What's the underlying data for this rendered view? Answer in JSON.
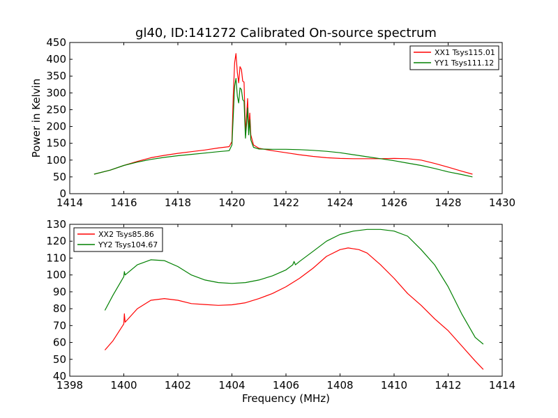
{
  "chart_data": [
    {
      "type": "line",
      "title": "gl40, ID:141272 Calibrated On-source spectrum",
      "xlabel": "",
      "ylabel": "Power in Kelvin",
      "xlim": [
        1414,
        1430
      ],
      "ylim": [
        0,
        450
      ],
      "xticks": [
        "1414",
        "1416",
        "1418",
        "1420",
        "1422",
        "1424",
        "1426",
        "1428",
        "1430"
      ],
      "yticks": [
        "0",
        "50",
        "100",
        "150",
        "200",
        "250",
        "300",
        "350",
        "400",
        "450"
      ],
      "legend_position": "top-right",
      "series": [
        {
          "name": "XX1 Tsys115.01",
          "color": "#ff0000",
          "points": [
            [
              1414.9,
              58
            ],
            [
              1415.5,
              70
            ],
            [
              1416,
              84
            ],
            [
              1416.5,
              96
            ],
            [
              1417,
              107
            ],
            [
              1417.5,
              114
            ],
            [
              1418,
              120
            ],
            [
              1418.5,
              125
            ],
            [
              1419,
              130
            ],
            [
              1419.5,
              136
            ],
            [
              1419.9,
              140
            ],
            [
              1420.0,
              155
            ],
            [
              1420.05,
              290
            ],
            [
              1420.1,
              390
            ],
            [
              1420.15,
              417
            ],
            [
              1420.2,
              360
            ],
            [
              1420.25,
              330
            ],
            [
              1420.3,
              378
            ],
            [
              1420.35,
              370
            ],
            [
              1420.4,
              335
            ],
            [
              1420.45,
              332
            ],
            [
              1420.5,
              180
            ],
            [
              1420.55,
              240
            ],
            [
              1420.58,
              283
            ],
            [
              1420.62,
              190
            ],
            [
              1420.66,
              240
            ],
            [
              1420.7,
              175
            ],
            [
              1420.8,
              145
            ],
            [
              1421,
              135
            ],
            [
              1421.5,
              128
            ],
            [
              1422,
              122
            ],
            [
              1422.5,
              116
            ],
            [
              1423,
              111
            ],
            [
              1423.5,
              107
            ],
            [
              1424,
              105
            ],
            [
              1424.5,
              104
            ],
            [
              1425,
              104
            ],
            [
              1425.5,
              104
            ],
            [
              1426,
              105
            ],
            [
              1426.5,
              104
            ],
            [
              1427,
              100
            ],
            [
              1427.5,
              90
            ],
            [
              1428,
              79
            ],
            [
              1428.5,
              67
            ],
            [
              1428.9,
              58
            ]
          ]
        },
        {
          "name": "YY1 Tsys111.12",
          "color": "#008000",
          "points": [
            [
              1414.9,
              58
            ],
            [
              1415.5,
              70
            ],
            [
              1416,
              84
            ],
            [
              1416.5,
              94
            ],
            [
              1417,
              102
            ],
            [
              1417.5,
              108
            ],
            [
              1418,
              113
            ],
            [
              1418.5,
              117
            ],
            [
              1419,
              121
            ],
            [
              1419.5,
              125
            ],
            [
              1419.9,
              128
            ],
            [
              1420.0,
              145
            ],
            [
              1420.05,
              230
            ],
            [
              1420.1,
              320
            ],
            [
              1420.15,
              343
            ],
            [
              1420.2,
              290
            ],
            [
              1420.25,
              270
            ],
            [
              1420.3,
              315
            ],
            [
              1420.35,
              310
            ],
            [
              1420.4,
              280
            ],
            [
              1420.45,
              275
            ],
            [
              1420.5,
              165
            ],
            [
              1420.55,
              215
            ],
            [
              1420.58,
              255
            ],
            [
              1420.62,
              175
            ],
            [
              1420.66,
              220
            ],
            [
              1420.7,
              160
            ],
            [
              1420.8,
              138
            ],
            [
              1421,
              133
            ],
            [
              1421.5,
              132
            ],
            [
              1422,
              132
            ],
            [
              1422.5,
              131
            ],
            [
              1423,
              129
            ],
            [
              1423.5,
              126
            ],
            [
              1424,
              122
            ],
            [
              1424.5,
              116
            ],
            [
              1425,
              110
            ],
            [
              1425.5,
              104
            ],
            [
              1426,
              98
            ],
            [
              1426.5,
              91
            ],
            [
              1427,
              84
            ],
            [
              1427.5,
              75
            ],
            [
              1428,
              65
            ],
            [
              1428.5,
              57
            ],
            [
              1428.9,
              50
            ]
          ]
        }
      ]
    },
    {
      "type": "line",
      "title": "",
      "xlabel": "Frequency (MHz)",
      "ylabel": "",
      "xlim": [
        1398,
        1414
      ],
      "ylim": [
        40,
        130
      ],
      "xticks": [
        "1398",
        "1400",
        "1402",
        "1404",
        "1406",
        "1408",
        "1410",
        "1412",
        "1414"
      ],
      "yticks": [
        "40",
        "50",
        "60",
        "70",
        "80",
        "90",
        "100",
        "110",
        "120",
        "130"
      ],
      "legend_position": "top-left",
      "series": [
        {
          "name": "XX2 Tsys85.86",
          "color": "#ff0000",
          "points": [
            [
              1399.3,
              55.5
            ],
            [
              1399.6,
              61
            ],
            [
              1400,
              71
            ],
            [
              1400.02,
              77
            ],
            [
              1400.05,
              72
            ],
            [
              1400.5,
              80
            ],
            [
              1401,
              85
            ],
            [
              1401.5,
              86
            ],
            [
              1402,
              85
            ],
            [
              1402.5,
              83
            ],
            [
              1403,
              82.5
            ],
            [
              1403.5,
              82
            ],
            [
              1404,
              82.3
            ],
            [
              1404.5,
              83.5
            ],
            [
              1405,
              86
            ],
            [
              1405.5,
              89
            ],
            [
              1406,
              93
            ],
            [
              1406.5,
              98
            ],
            [
              1407,
              104
            ],
            [
              1407.5,
              111
            ],
            [
              1408,
              115
            ],
            [
              1408.3,
              116
            ],
            [
              1408.7,
              115
            ],
            [
              1409,
              113
            ],
            [
              1409.5,
              106
            ],
            [
              1410,
              98
            ],
            [
              1410.5,
              89
            ],
            [
              1411,
              82
            ],
            [
              1411.5,
              74
            ],
            [
              1412,
              67
            ],
            [
              1412.5,
              58
            ],
            [
              1413,
              49
            ],
            [
              1413.3,
              44
            ]
          ]
        },
        {
          "name": "YY2 Tsys104.67",
          "color": "#008000",
          "points": [
            [
              1399.3,
              79
            ],
            [
              1399.6,
              88
            ],
            [
              1400,
              99
            ],
            [
              1400.02,
              102
            ],
            [
              1400.05,
              100
            ],
            [
              1400.5,
              106
            ],
            [
              1401,
              109
            ],
            [
              1401.5,
              108.5
            ],
            [
              1402,
              105
            ],
            [
              1402.5,
              100
            ],
            [
              1403,
              97
            ],
            [
              1403.5,
              95.5
            ],
            [
              1404,
              95
            ],
            [
              1404.5,
              95.5
            ],
            [
              1405,
              97
            ],
            [
              1405.5,
              99.5
            ],
            [
              1406,
              103
            ],
            [
              1406.25,
              106
            ],
            [
              1406.3,
              108
            ],
            [
              1406.35,
              106
            ],
            [
              1406.5,
              108
            ],
            [
              1407,
              114
            ],
            [
              1407.5,
              120
            ],
            [
              1408,
              124
            ],
            [
              1408.5,
              126
            ],
            [
              1409,
              127
            ],
            [
              1409.5,
              127
            ],
            [
              1410,
              126
            ],
            [
              1410.5,
              123
            ],
            [
              1411,
              115
            ],
            [
              1411.5,
              106
            ],
            [
              1412,
              93
            ],
            [
              1412.5,
              77
            ],
            [
              1413,
              63
            ],
            [
              1413.3,
              59
            ]
          ]
        }
      ]
    }
  ]
}
